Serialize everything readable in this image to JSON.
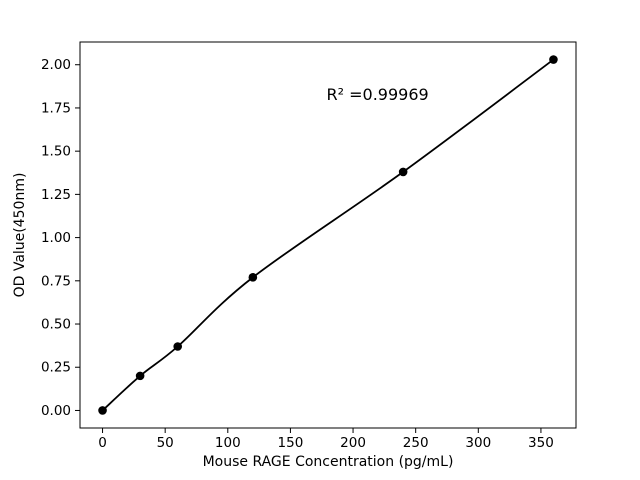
{
  "chart_data": {
    "type": "scatter",
    "title": "",
    "xlabel": "Mouse RAGE Concentration (pg/mL)",
    "ylabel": "OD Value(450nm)",
    "annotation": "R² =0.99969",
    "x": [
      0,
      30,
      60,
      120,
      240,
      360
    ],
    "y": [
      0.0,
      0.2,
      0.37,
      0.77,
      1.38,
      2.03
    ],
    "xticks": [
      0,
      50,
      100,
      150,
      200,
      250,
      300,
      350
    ],
    "yticks": [
      0.0,
      0.25,
      0.5,
      0.75,
      1.0,
      1.25,
      1.5,
      1.75,
      2.0
    ],
    "xlim": [
      -18,
      378
    ],
    "ylim": [
      -0.1015,
      2.1315
    ],
    "annotation_pos": {
      "fx": 0.6,
      "fy": 0.15
    },
    "marker_color": "#000000",
    "line_color": "#000000",
    "axis_color": "#000000",
    "background": "#ffffff",
    "grid": false,
    "legend": "none",
    "curve": "smooth-fit-through-points"
  }
}
